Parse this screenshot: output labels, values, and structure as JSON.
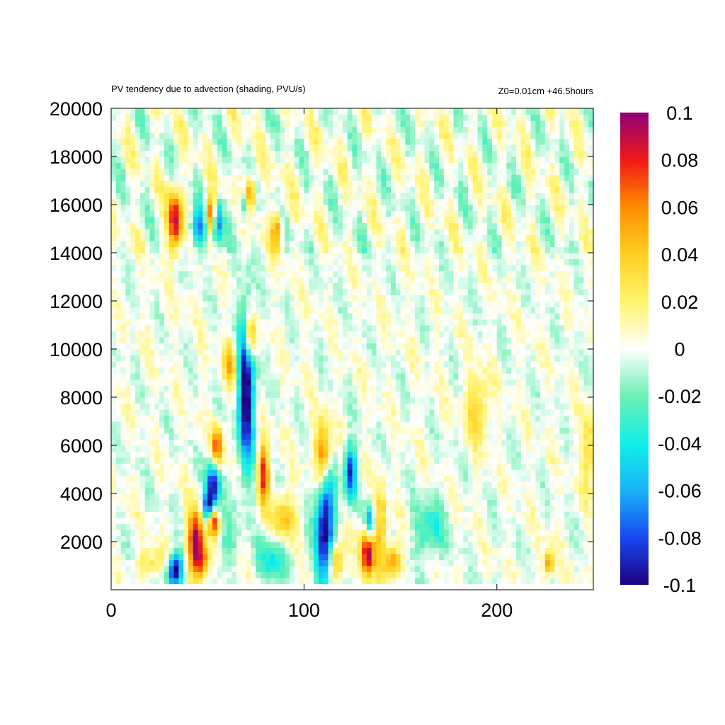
{
  "chart_data": {
    "type": "heatmap",
    "title": "PV tendency due to advection (shading, PVU/s)",
    "subtitle": "Z0=0.01cm   +46.5hours",
    "xlabel": "",
    "ylabel": "",
    "xlim": [
      0,
      250
    ],
    "ylim": [
      250,
      20000
    ],
    "x_ticks": [
      "0",
      "100",
      "200"
    ],
    "x_tick_values": [
      0,
      100,
      200
    ],
    "y_ticks": [
      "2000",
      "4000",
      "6000",
      "8000",
      "10000",
      "12000",
      "14000",
      "16000",
      "18000",
      "20000"
    ],
    "y_tick_values": [
      2000,
      4000,
      6000,
      8000,
      10000,
      12000,
      14000,
      16000,
      18000,
      20000
    ],
    "colorbar": {
      "range": [
        -0.1,
        0.1
      ],
      "tick_labels": [
        "0.1",
        "0.08",
        "0.06",
        "0.04",
        "0.02",
        "0",
        "-0.02",
        "-0.04",
        "-0.06",
        "-0.08",
        "-0.1"
      ],
      "tick_values": [
        0.1,
        0.08,
        0.06,
        0.04,
        0.02,
        0,
        -0.02,
        -0.04,
        -0.06,
        -0.08,
        -0.1
      ],
      "colormap": [
        {
          "v": -0.1,
          "color": "#1c0080"
        },
        {
          "v": -0.08,
          "color": "#1848f0"
        },
        {
          "v": -0.06,
          "color": "#18b4f8"
        },
        {
          "v": -0.04,
          "color": "#10f0e8"
        },
        {
          "v": -0.02,
          "color": "#6ef0b4"
        },
        {
          "v": 0,
          "color": "#ffffff"
        },
        {
          "v": 0.02,
          "color": "#fff46e"
        },
        {
          "v": 0.04,
          "color": "#ffd020"
        },
        {
          "v": 0.06,
          "color": "#ff8c00"
        },
        {
          "v": 0.08,
          "color": "#f01818"
        },
        {
          "v": 0.1,
          "color": "#900078"
        }
      ]
    },
    "grid": false,
    "data_description": "Approximate reconstruction: value = sum of localized features (x, z centers in data units)",
    "features": [
      {
        "x": 33,
        "z": 15300,
        "sx": 2.5,
        "sz": 900,
        "v": 0.095
      },
      {
        "x": 45,
        "z": 15000,
        "sx": 3,
        "sz": 600,
        "v": -0.07
      },
      {
        "x": 52,
        "z": 15600,
        "sx": 2,
        "sz": 600,
        "v": 0.09
      },
      {
        "x": 55,
        "z": 15300,
        "sx": 2,
        "sz": 700,
        "v": -0.085
      },
      {
        "x": 72,
        "z": 16500,
        "sx": 2,
        "sz": 500,
        "v": 0.08
      },
      {
        "x": 69,
        "z": 16000,
        "sx": 2,
        "sz": 500,
        "v": -0.05
      },
      {
        "x": 86,
        "z": 15000,
        "sx": 2,
        "sz": 600,
        "v": 0.06
      },
      {
        "x": 72,
        "z": 10500,
        "sx": 2,
        "sz": 700,
        "v": 0.08
      },
      {
        "x": 70,
        "z": 8300,
        "sx": 3,
        "sz": 2300,
        "v": -0.11
      },
      {
        "x": 62,
        "z": 9400,
        "sx": 2.5,
        "sz": 700,
        "v": 0.045
      },
      {
        "x": 55,
        "z": 5900,
        "sx": 2,
        "sz": 600,
        "v": 0.08
      },
      {
        "x": 53,
        "z": 4400,
        "sx": 2.5,
        "sz": 700,
        "v": -0.1
      },
      {
        "x": 50,
        "z": 3400,
        "sx": 2,
        "sz": 450,
        "v": -0.08
      },
      {
        "x": 53,
        "z": 2800,
        "sx": 2,
        "sz": 400,
        "v": 0.085
      },
      {
        "x": 44,
        "z": 2000,
        "sx": 3,
        "sz": 900,
        "v": 0.1
      },
      {
        "x": 33,
        "z": 800,
        "sx": 3,
        "sz": 500,
        "v": -0.11
      },
      {
        "x": 79,
        "z": 4800,
        "sx": 2,
        "sz": 900,
        "v": 0.08
      },
      {
        "x": 90,
        "z": 3000,
        "sx": 4,
        "sz": 700,
        "v": 0.045
      },
      {
        "x": 84,
        "z": 1300,
        "sx": 6,
        "sz": 600,
        "v": -0.04
      },
      {
        "x": 110,
        "z": 5600,
        "sx": 3,
        "sz": 1000,
        "v": 0.09
      },
      {
        "x": 111,
        "z": 2600,
        "sx": 3.5,
        "sz": 2000,
        "v": -0.11
      },
      {
        "x": 116,
        "z": 1200,
        "sx": 3,
        "sz": 700,
        "v": 0.07
      },
      {
        "x": 124,
        "z": 4900,
        "sx": 2,
        "sz": 800,
        "v": -0.09
      },
      {
        "x": 133,
        "z": 1500,
        "sx": 2.5,
        "sz": 700,
        "v": 0.1
      },
      {
        "x": 134,
        "z": 2800,
        "sx": 1.5,
        "sz": 500,
        "v": -0.07
      },
      {
        "x": 140,
        "z": 2600,
        "sx": 2,
        "sz": 1200,
        "v": 0.045
      },
      {
        "x": 146,
        "z": 1200,
        "sx": 3,
        "sz": 500,
        "v": 0.06
      },
      {
        "x": 165,
        "z": 2500,
        "sx": 6,
        "sz": 900,
        "v": -0.035
      },
      {
        "x": 190,
        "z": 7600,
        "sx": 4,
        "sz": 1000,
        "v": 0.04
      },
      {
        "x": 227,
        "z": 1100,
        "sx": 2,
        "sz": 400,
        "v": 0.055
      },
      {
        "x": 248,
        "z": 5800,
        "sx": 3,
        "sz": 1200,
        "v": 0.035
      },
      {
        "x": 22,
        "z": 1100,
        "sx": 6,
        "sz": 400,
        "v": 0.03
      },
      {
        "x": 48,
        "z": 1200,
        "sx": 3,
        "sz": 400,
        "v": 0.05
      },
      {
        "x": 60,
        "z": 2000,
        "sx": 3,
        "sz": 700,
        "v": -0.03
      }
    ]
  }
}
